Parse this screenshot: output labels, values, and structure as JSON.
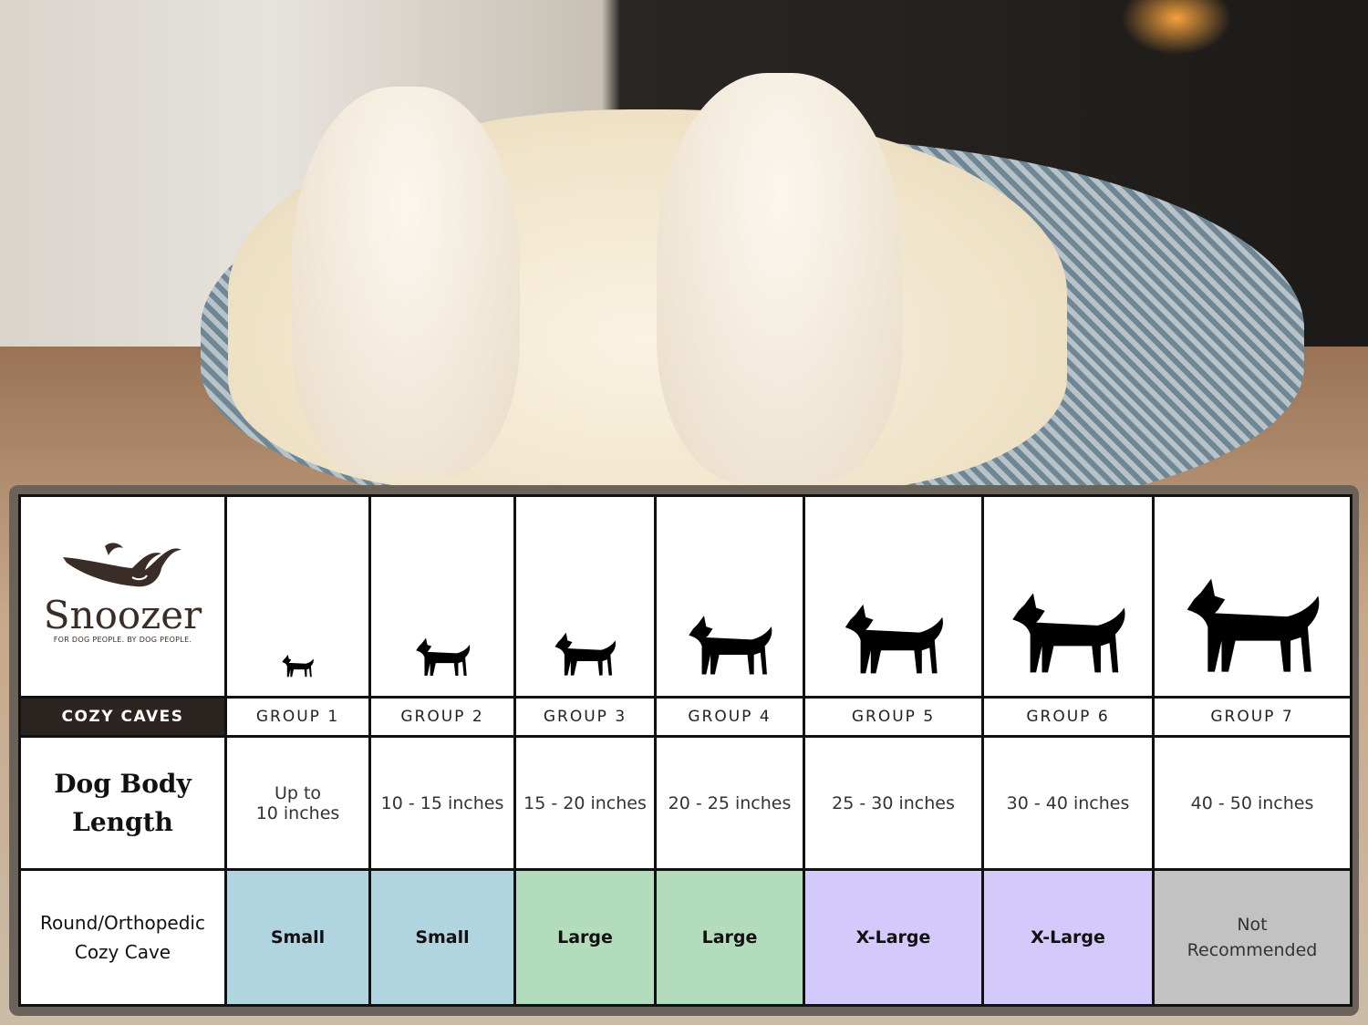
{
  "brand": {
    "name": "Snoozer",
    "tagline": "FOR DOG PEOPLE. BY DOG PEOPLE.",
    "product_line": "COZY CAVES"
  },
  "rows": {
    "length_header": [
      "Dog Body",
      "Length"
    ],
    "size_header": [
      "Round/Orthopedic",
      "Cozy Cave"
    ]
  },
  "groups": [
    {
      "label": "GROUP 1",
      "length": [
        "Up to",
        "10 inches"
      ],
      "size": "Small",
      "color": "#b0d5e0",
      "icon": "chihuahua-silhouette-icon"
    },
    {
      "label": "GROUP 2",
      "length": [
        "10 - 15 inches"
      ],
      "size": "Small",
      "color": "#b0d5e0",
      "icon": "pomeranian-silhouette-icon"
    },
    {
      "label": "GROUP 3",
      "length": [
        "15 - 20 inches"
      ],
      "size": "Large",
      "color": "#b2dcbc",
      "icon": "boston-terrier-silhouette-icon"
    },
    {
      "label": "GROUP 4",
      "length": [
        "20 - 25 inches"
      ],
      "size": "Large",
      "color": "#b2dcbc",
      "icon": "shiba-silhouette-icon"
    },
    {
      "label": "GROUP 5",
      "length": [
        "25 - 30 inches"
      ],
      "size": "X-Large",
      "color": "#d3c9fb",
      "icon": "golden-retriever-silhouette-icon"
    },
    {
      "label": "GROUP 6",
      "length": [
        "30 - 40 inches"
      ],
      "size": "X-Large",
      "color": "#d3c9fb",
      "icon": "doberman-silhouette-icon"
    },
    {
      "label": "GROUP 7",
      "length": [
        "40 - 50 inches"
      ],
      "size": [
        "Not",
        "Recommended"
      ],
      "color": "#c2c2c2",
      "icon": "great-dane-silhouette-icon"
    }
  ]
}
